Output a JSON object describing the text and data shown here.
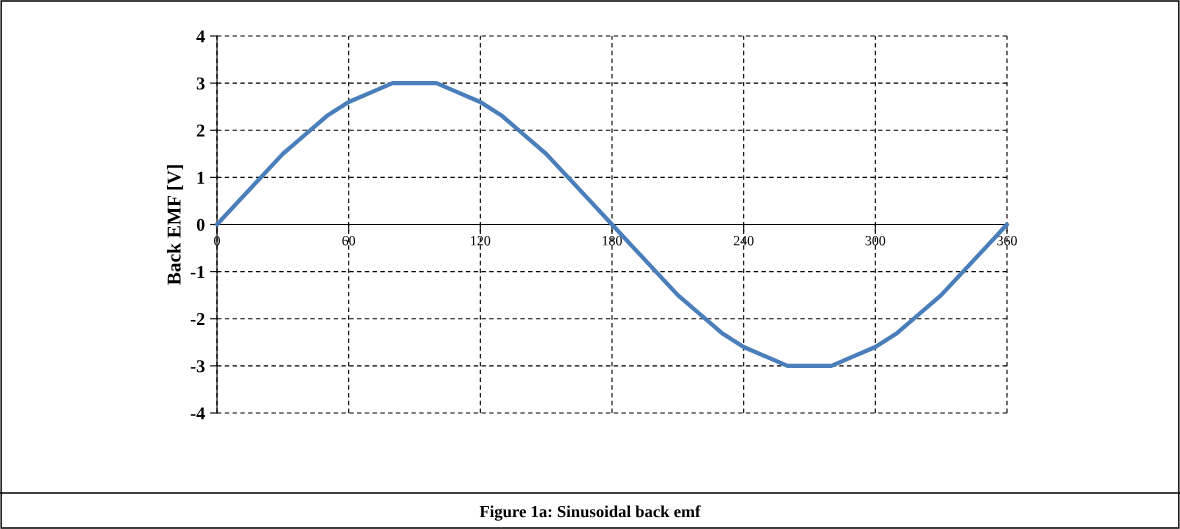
{
  "chart_data": {
    "type": "line",
    "ylabel": "Back EMF [V]",
    "annotations": [
      "Figure 1a: Sinusoidal back emf"
    ],
    "x": [
      0,
      10,
      20,
      30,
      40,
      50,
      60,
      70,
      80,
      90,
      100,
      110,
      120,
      130,
      140,
      150,
      160,
      170,
      180,
      190,
      200,
      210,
      220,
      230,
      240,
      250,
      260,
      270,
      280,
      290,
      300,
      310,
      320,
      330,
      340,
      350,
      360
    ],
    "series": [
      {
        "color": "#4a7ebb",
        "values": [
          0,
          0.5,
          1.0,
          1.5,
          1.9,
          2.3,
          2.6,
          2.8,
          3.0,
          3.0,
          3.0,
          2.8,
          2.6,
          2.3,
          1.9,
          1.5,
          1.0,
          0.5,
          0,
          -0.5,
          -1.0,
          -1.5,
          -1.9,
          -2.3,
          -2.6,
          -2.8,
          -3.0,
          -3.0,
          -3.0,
          -2.8,
          -2.6,
          -2.3,
          -1.9,
          -1.5,
          -1.0,
          -0.5,
          0
        ]
      }
    ],
    "xlim": [
      0,
      360
    ],
    "xticks": [
      0,
      60,
      120,
      180,
      240,
      300,
      360
    ],
    "ylim": [
      -4,
      4
    ],
    "yticks": [
      -4,
      -3,
      -2,
      -1,
      0,
      1,
      2,
      3,
      4
    ],
    "grid": true,
    "line_style": "solid",
    "marker": "none",
    "legend": false
  }
}
